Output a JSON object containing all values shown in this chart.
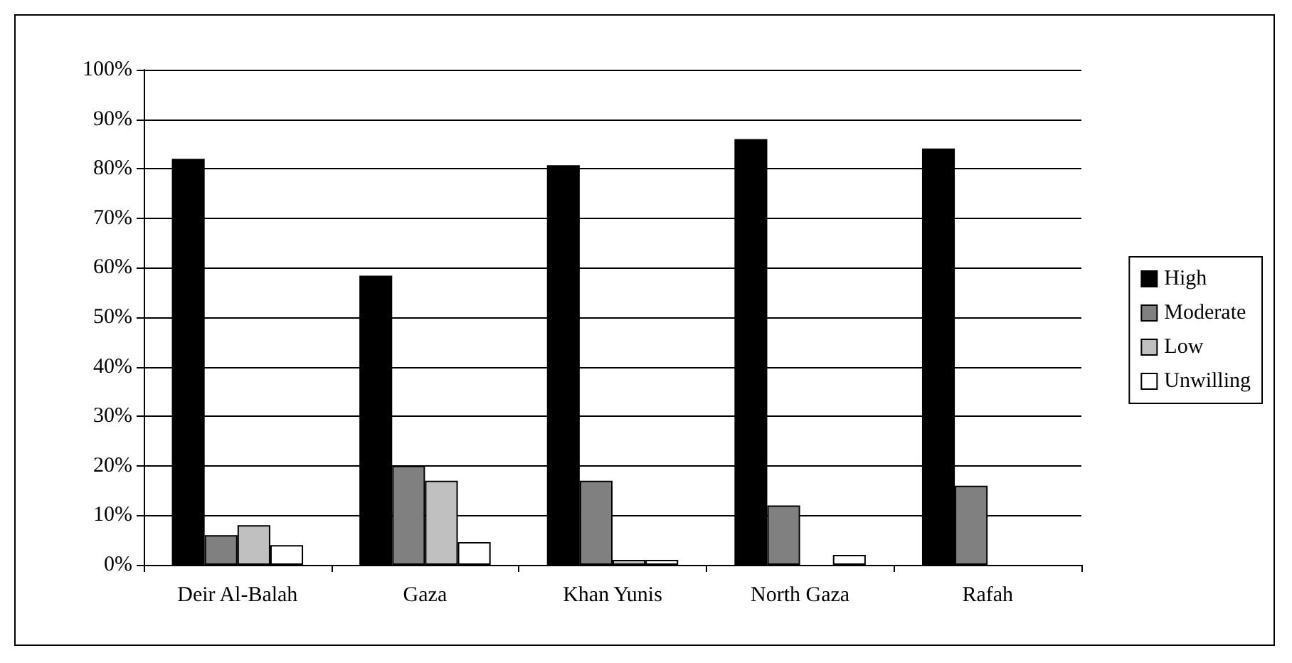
{
  "chart_data": {
    "type": "bar",
    "categories": [
      "Deir Al-Balah",
      "Gaza",
      "Khan Yunis",
      "North Gaza",
      "Rafah"
    ],
    "series": [
      {
        "name": "High",
        "color": "#000000",
        "values": [
          82,
          58.4,
          80.7,
          86,
          84.1
        ]
      },
      {
        "name": "Moderate",
        "color": "#808080",
        "values": [
          6,
          20,
          17,
          12,
          16
        ]
      },
      {
        "name": "Low",
        "color": "#c0c0c0",
        "values": [
          8,
          17,
          1,
          0,
          0
        ]
      },
      {
        "name": "Unwilling",
        "color": "#ffffff",
        "values": [
          4,
          4.6,
          1,
          2,
          0
        ]
      }
    ],
    "ylim": [
      0,
      100
    ],
    "yticks": [
      {
        "value": 0,
        "label": "0%"
      },
      {
        "value": 10,
        "label": "10%"
      },
      {
        "value": 20,
        "label": "20%"
      },
      {
        "value": 30,
        "label": "30%"
      },
      {
        "value": 40,
        "label": "40%"
      },
      {
        "value": 50,
        "label": "50%"
      },
      {
        "value": 60,
        "label": "60%"
      },
      {
        "value": 70,
        "label": "70%"
      },
      {
        "value": 80,
        "label": "80%"
      },
      {
        "value": 90,
        "label": "90%"
      },
      {
        "value": 100,
        "label": "100%"
      }
    ],
    "grid": "y",
    "legend": "right"
  }
}
